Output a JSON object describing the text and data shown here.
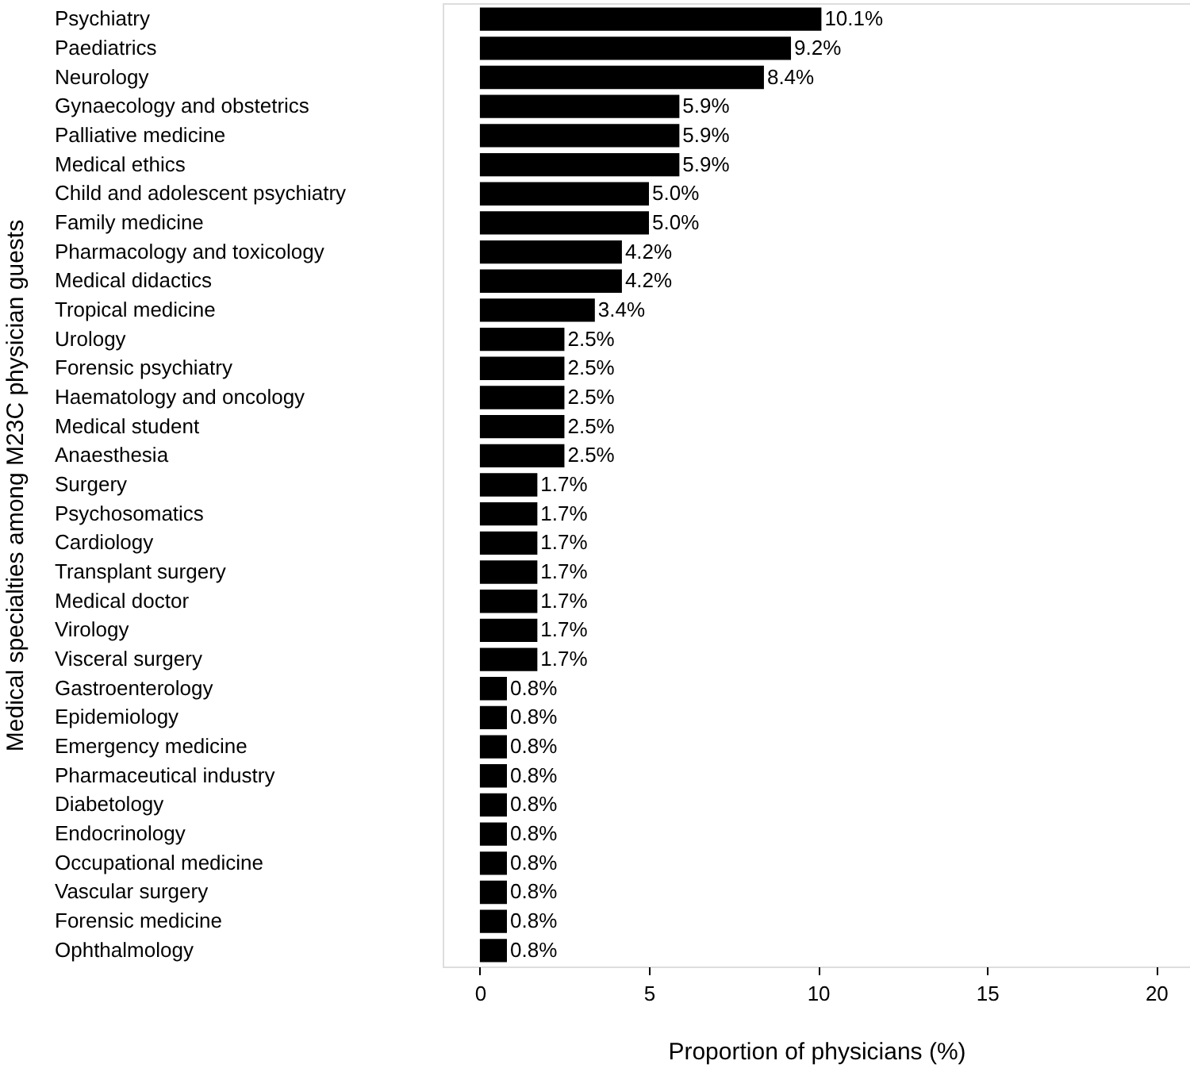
{
  "chart_data": {
    "type": "bar",
    "orientation": "horizontal",
    "xlabel": "Proportion of physicians (%)",
    "ylabel": "Medical specialties among M23C physician guests",
    "categories": [
      "Psychiatry",
      "Paediatrics",
      "Neurology",
      "Gynaecology and obstetrics",
      "Palliative medicine",
      "Medical ethics",
      "Child and adolescent psychiatry",
      "Family medicine",
      "Pharmacology and toxicology",
      "Medical didactics",
      "Tropical medicine",
      "Urology",
      "Forensic psychiatry",
      "Haematology and oncology",
      "Medical student",
      "Anaesthesia",
      "Surgery",
      "Psychosomatics",
      "Cardiology",
      "Transplant surgery",
      "Medical doctor",
      "Virology",
      "Visceral surgery",
      "Gastroenterology",
      "Epidemiology",
      "Emergency medicine",
      "Pharmaceutical industry",
      "Diabetology",
      "Endocrinology",
      "Occupational medicine",
      "Vascular surgery",
      "Forensic medicine",
      "Ophthalmology"
    ],
    "values": [
      10.1,
      9.2,
      8.4,
      5.9,
      5.9,
      5.9,
      5.0,
      5.0,
      4.2,
      4.2,
      3.4,
      2.5,
      2.5,
      2.5,
      2.5,
      2.5,
      1.7,
      1.7,
      1.7,
      1.7,
      1.7,
      1.7,
      1.7,
      0.8,
      0.8,
      0.8,
      0.8,
      0.8,
      0.8,
      0.8,
      0.8,
      0.8,
      0.8
    ],
    "value_labels": [
      "10.1%",
      "9.2%",
      "8.4%",
      "5.9%",
      "5.9%",
      "5.9%",
      "5.0%",
      "5.0%",
      "4.2%",
      "4.2%",
      "3.4%",
      "2.5%",
      "2.5%",
      "2.5%",
      "2.5%",
      "2.5%",
      "1.7%",
      "1.7%",
      "1.7%",
      "1.7%",
      "1.7%",
      "1.7%",
      "1.7%",
      "0.8%",
      "0.8%",
      "0.8%",
      "0.8%",
      "0.8%",
      "0.8%",
      "0.8%",
      "0.8%",
      "0.8%",
      "0.8%"
    ],
    "color": "#000000",
    "xlim": [
      -1.1,
      21
    ],
    "xticks": [
      0,
      5,
      10,
      15,
      20
    ],
    "grid": false
  }
}
